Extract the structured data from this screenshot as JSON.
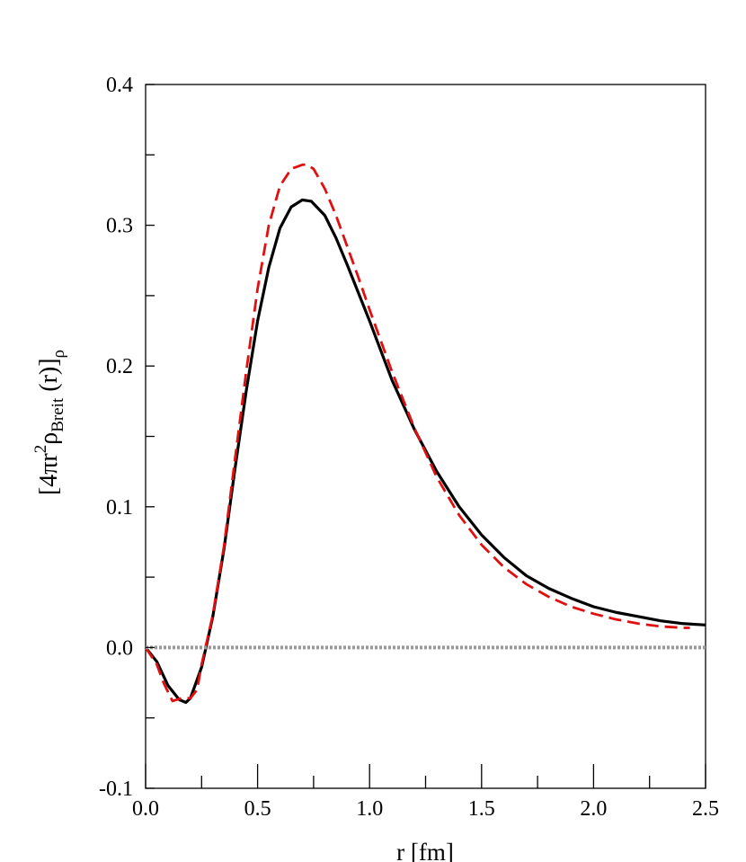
{
  "chart_data": {
    "type": "line",
    "title": "",
    "xlabel": "r  [fm]",
    "ylabel": {
      "lead": "[4πr",
      "sup": "2",
      "rho": "ρ",
      "sub": "Breit",
      "tail": " (r)]",
      "sub2": "ρ"
    },
    "xlim": [
      0.0,
      2.5
    ],
    "ylim": [
      -0.1,
      0.4
    ],
    "x_major_ticks": [
      0.0,
      0.5,
      1.0,
      1.5,
      2.0,
      2.5
    ],
    "x_tick_labels": [
      "0.0",
      "0.5",
      "1.0",
      "1.5",
      "2.0",
      "2.5"
    ],
    "x_minor_ticks": [
      0.25,
      0.75,
      1.25,
      1.75,
      2.25
    ],
    "y_major_ticks": [
      -0.1,
      0.0,
      0.1,
      0.2,
      0.3,
      0.4
    ],
    "y_tick_labels": [
      "-0.1",
      "0.0",
      "0.1",
      "0.2",
      "0.3",
      "0.4"
    ],
    "y_minor_ticks": [
      -0.05,
      0.05,
      0.15,
      0.25,
      0.35
    ],
    "grid": false,
    "legend": "none",
    "series": [
      {
        "style": "solid",
        "color": "#000000",
        "x": [
          0.0,
          0.05,
          0.1,
          0.15,
          0.18,
          0.2,
          0.25,
          0.3,
          0.35,
          0.4,
          0.45,
          0.5,
          0.55,
          0.6,
          0.65,
          0.7,
          0.74,
          0.8,
          0.85,
          0.9,
          0.95,
          1.0,
          1.1,
          1.2,
          1.3,
          1.4,
          1.5,
          1.6,
          1.7,
          1.8,
          1.9,
          2.0,
          2.1,
          2.2,
          2.3,
          2.4,
          2.5
        ],
        "y": [
          0.0,
          -0.01,
          -0.027,
          -0.037,
          -0.039,
          -0.036,
          -0.014,
          0.022,
          0.07,
          0.128,
          0.183,
          0.232,
          0.27,
          0.298,
          0.313,
          0.318,
          0.317,
          0.307,
          0.291,
          0.272,
          0.252,
          0.232,
          0.19,
          0.155,
          0.125,
          0.1,
          0.08,
          0.064,
          0.051,
          0.042,
          0.035,
          0.029,
          0.025,
          0.022,
          0.019,
          0.017,
          0.016
        ]
      },
      {
        "style": "dashed",
        "color": "#e01010",
        "x": [
          0.0,
          0.05,
          0.08,
          0.12,
          0.16,
          0.2,
          0.23,
          0.25,
          0.3,
          0.35,
          0.4,
          0.45,
          0.5,
          0.55,
          0.6,
          0.65,
          0.7,
          0.72,
          0.75,
          0.8,
          0.85,
          0.9,
          0.95,
          1.0,
          1.1,
          1.2,
          1.3,
          1.4,
          1.5,
          1.6,
          1.7,
          1.8,
          1.9,
          2.0,
          2.1,
          2.2,
          2.3,
          2.4,
          2.43
        ],
        "y": [
          0.0,
          -0.012,
          -0.025,
          -0.038,
          -0.036,
          -0.036,
          -0.03,
          -0.012,
          0.023,
          0.072,
          0.135,
          0.197,
          0.255,
          0.3,
          0.328,
          0.34,
          0.343,
          0.343,
          0.34,
          0.326,
          0.307,
          0.285,
          0.263,
          0.24,
          0.196,
          0.156,
          0.121,
          0.094,
          0.073,
          0.057,
          0.045,
          0.036,
          0.029,
          0.024,
          0.02,
          0.017,
          0.015,
          0.014,
          0.014
        ]
      },
      {
        "style": "dotted-thick",
        "color": "#999999",
        "x": [
          0.0,
          2.5
        ],
        "y": [
          0.0,
          0.0
        ]
      }
    ]
  }
}
